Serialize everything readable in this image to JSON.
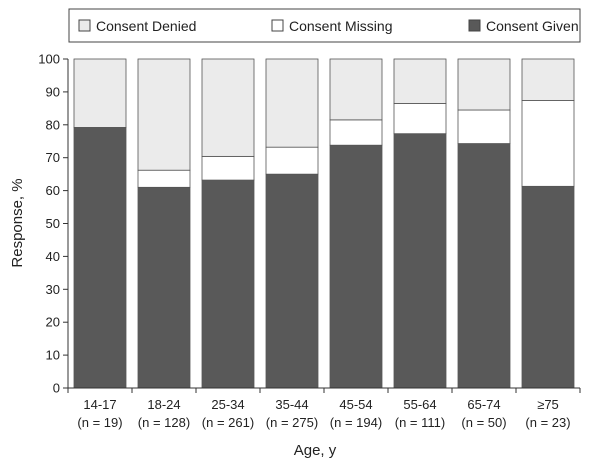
{
  "chart_data": {
    "type": "bar",
    "stacked": true,
    "categories": [
      "14-17",
      "18-24",
      "25-34",
      "35-44",
      "45-54",
      "55-64",
      "65-74",
      "≥75"
    ],
    "category_counts": [
      "(n = 19)",
      "(n = 128)",
      "(n = 261)",
      "(n = 275)",
      "(n = 194)",
      "(n = 111)",
      "(n = 50)",
      "(n = 23)"
    ],
    "series": [
      {
        "name": "Consent Given",
        "color": "#595959",
        "values": [
          79.2,
          61.0,
          63.2,
          65.0,
          73.8,
          77.3,
          74.3,
          61.3
        ]
      },
      {
        "name": "Consent Missing",
        "color": "#ffffff",
        "values": [
          0,
          5.2,
          7.2,
          8.2,
          7.7,
          9.2,
          10.2,
          26.1
        ]
      },
      {
        "name": "Consent Denied",
        "color": "#ebebeb",
        "values": [
          20.8,
          33.8,
          29.6,
          26.8,
          18.5,
          13.5,
          15.5,
          12.6
        ]
      }
    ],
    "legend_order": [
      "Consent Denied",
      "Consent Missing",
      "Consent Given"
    ],
    "legend_position": "top",
    "xlabel": "Age, y",
    "ylabel": "Response, %",
    "ylim": [
      0,
      100
    ],
    "yticks": [
      0,
      10,
      20,
      30,
      40,
      50,
      60,
      70,
      80,
      90,
      100
    ],
    "grid": false
  }
}
